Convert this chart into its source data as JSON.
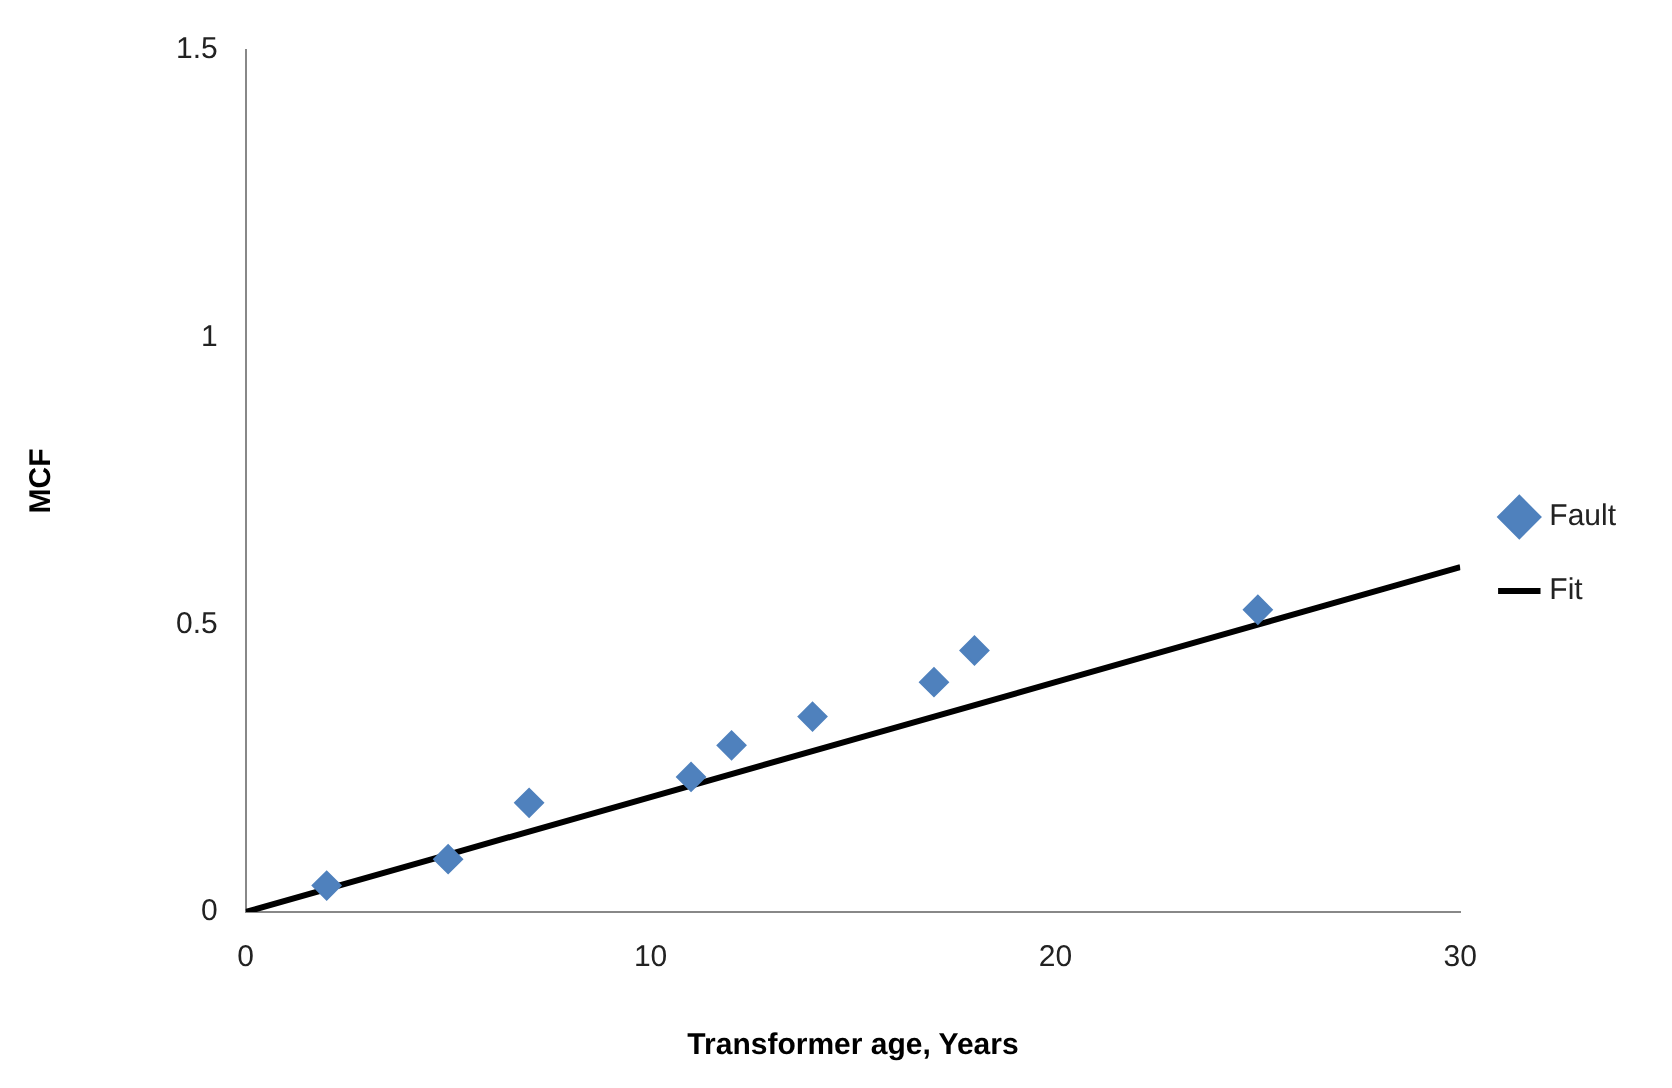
{
  "chart_data": {
    "type": "scatter",
    "xlabel": "Transformer age, Years",
    "ylabel": "MCF",
    "xlim": [
      0,
      30
    ],
    "xticks": [
      0,
      10,
      20,
      30
    ],
    "ylim": [
      0,
      1.5
    ],
    "yticks": [
      0,
      0.5,
      1,
      1.5
    ],
    "grid": false,
    "legend": "right",
    "series": [
      {
        "name": "Fault",
        "color": "#4f81bd",
        "marker": "diamond",
        "x": [
          2,
          5,
          7,
          11,
          12,
          14,
          17,
          18,
          25
        ],
        "values": [
          0.046,
          0.092,
          0.19,
          0.235,
          0.29,
          0.34,
          0.4,
          0.455,
          0.526
        ]
      },
      {
        "name": "Fit",
        "type": "line",
        "color": "#000000",
        "marker": "none",
        "x": [
          0,
          5,
          10,
          15,
          20,
          25,
          30
        ],
        "values": [
          0,
          0.1,
          0.2,
          0.3,
          0.4,
          0.5,
          0.6
        ]
      }
    ]
  }
}
